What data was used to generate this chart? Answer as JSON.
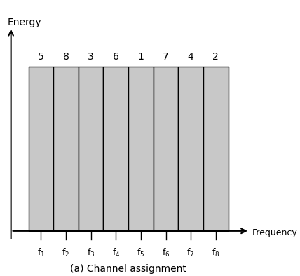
{
  "title": "(a) Channel assignment",
  "ylabel": "Energy",
  "xlabel": "Frequency",
  "channel_labels": [
    "5",
    "8",
    "3",
    "6",
    "1",
    "7",
    "4",
    "2"
  ],
  "freq_labels": [
    "f$_1$",
    "f$_2$",
    "f$_3$",
    "f$_4$",
    "f$_5$",
    "f$_6$",
    "f$_7$",
    "f$_8$"
  ],
  "n_channels": 8,
  "bar_color": "#c8c8c8",
  "bar_edge_color": "#000000",
  "background_color": "#ffffff",
  "text_color": "#000000",
  "bar_start_x": 1.0,
  "bar_width": 1.0,
  "bar_height": 5.0,
  "y_axis_x": 0.3,
  "xlim": [
    -0.1,
    10.5
  ],
  "ylim": [
    -1.2,
    7.0
  ]
}
